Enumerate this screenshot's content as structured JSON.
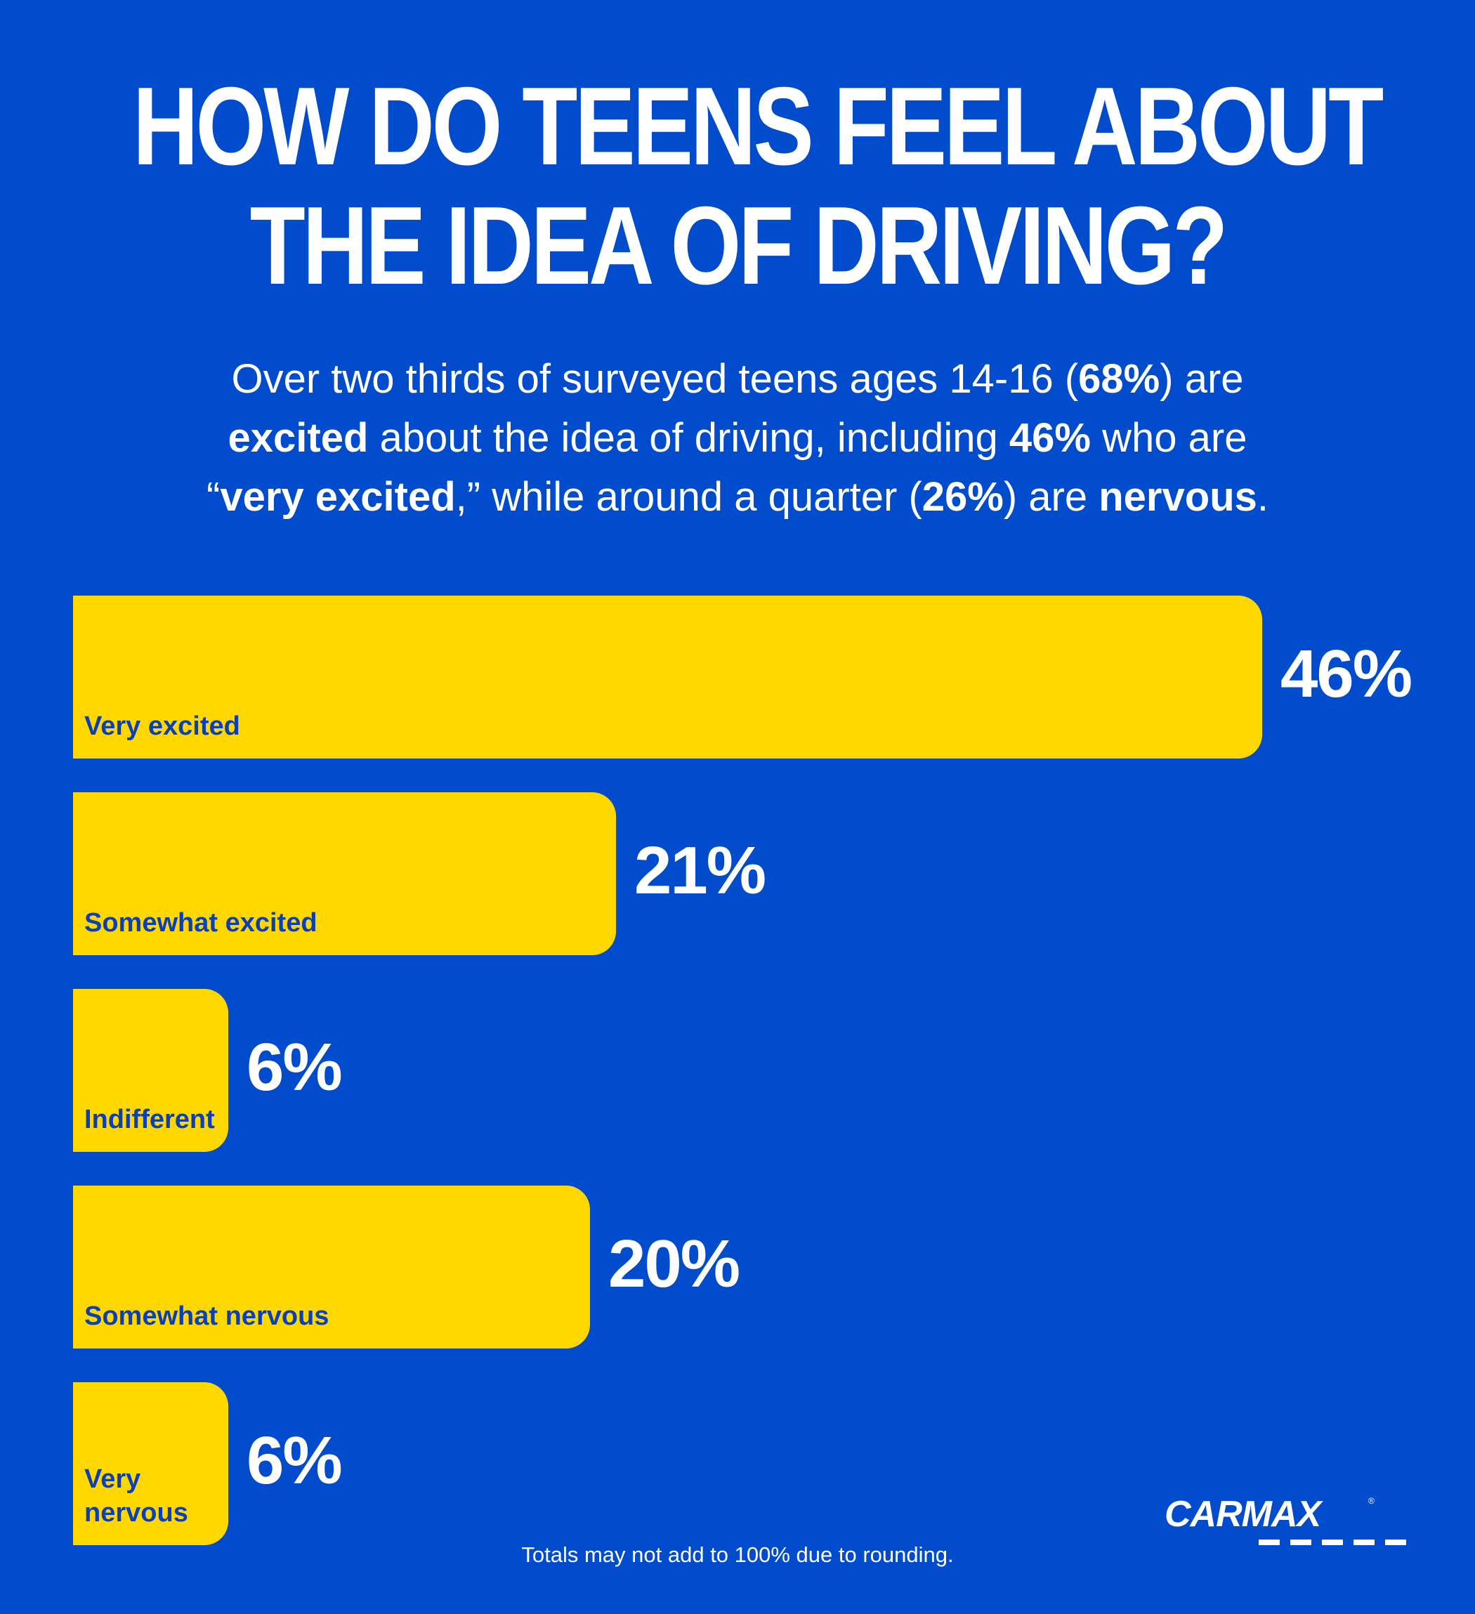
{
  "title": {
    "line1": "HOW DO TEENS FEEL ABOUT",
    "line2": "THE IDEA OF DRIVING?"
  },
  "subtitle": {
    "line1": [
      {
        "text": "Over two thirds of surveyed teens ages 14-16 (",
        "bold": false
      },
      {
        "text": "68%",
        "bold": true
      },
      {
        "text": ") are",
        "bold": false
      }
    ],
    "line2": [
      {
        "text": "excited",
        "bold": true
      },
      {
        "text": " about the idea of driving, including ",
        "bold": false
      },
      {
        "text": "46%",
        "bold": true
      },
      {
        "text": " who are",
        "bold": false
      }
    ],
    "line3": [
      {
        "text": "“",
        "bold": false
      },
      {
        "text": "very excited",
        "bold": true
      },
      {
        "text": ",” while around a quarter (",
        "bold": false
      },
      {
        "text": "26%",
        "bold": true
      },
      {
        "text": ") are ",
        "bold": false
      },
      {
        "text": "nervous",
        "bold": true
      },
      {
        "text": ".",
        "bold": false
      }
    ]
  },
  "chart_data": {
    "type": "bar",
    "orientation": "horizontal",
    "categories": [
      "Very excited",
      "Somewhat excited",
      "Indifferent",
      "Somewhat nervous",
      "Very nervous"
    ],
    "category_display": [
      "Very excited",
      "Somewhat excited",
      "Indifferent",
      "Somewhat nervous",
      "Very\nnervous"
    ],
    "values": [
      46,
      21,
      6,
      20,
      6
    ],
    "value_labels": [
      "46%",
      "21%",
      "6%",
      "20%",
      "6%"
    ],
    "unit": "%",
    "bar_color": "#FFD800",
    "label_color": "#0A3FB8",
    "grid": false,
    "legend": "none"
  },
  "footnote": "Totals may not add to 100% due to rounding.",
  "logo": {
    "text": "CARMAX",
    "reg": "®"
  },
  "colors": {
    "background": "#014CCC",
    "accent": "#FFD800",
    "text": "#FFFFFF"
  }
}
